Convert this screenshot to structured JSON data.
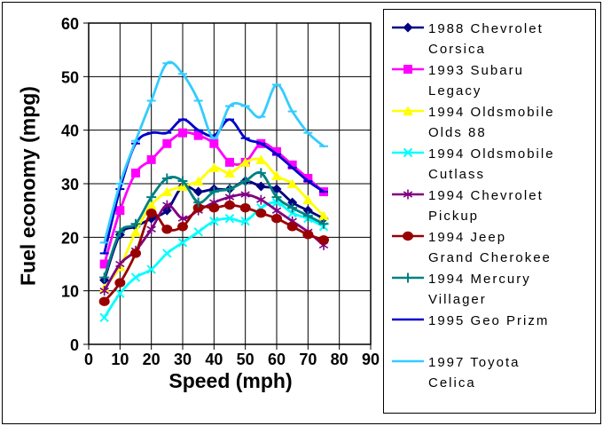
{
  "chart_data": {
    "type": "line",
    "title": "",
    "xlabel": "Speed (mph)",
    "ylabel": "Fuel economy (mpg)",
    "xlim": [
      0,
      90
    ],
    "ylim": [
      0,
      60
    ],
    "x_ticks": [
      0,
      10,
      20,
      30,
      40,
      50,
      60,
      70,
      80,
      90
    ],
    "y_ticks": [
      0,
      10,
      20,
      30,
      40,
      50,
      60
    ],
    "grid": true,
    "legend_position": "right",
    "x": [
      5,
      10,
      15,
      20,
      25,
      30,
      35,
      40,
      45,
      50,
      55,
      60,
      65,
      70,
      75
    ],
    "series": [
      {
        "name": "1988 Chevrolet Corsica",
        "legend_lines": [
          "1988 Chevrolet",
          "Corsica"
        ],
        "color": "#000080",
        "marker": "diamond",
        "values": [
          12,
          20.5,
          22,
          23.5,
          25,
          29.5,
          28.5,
          29,
          29,
          30.5,
          29.5,
          29,
          26.5,
          25,
          23.5
        ]
      },
      {
        "name": "1993 Subaru Legacy",
        "legend_lines": [
          "1993 Subaru",
          "Legacy"
        ],
        "color": "#FF00FF",
        "marker": "square",
        "values": [
          15,
          25,
          32,
          34.5,
          37.5,
          39.5,
          39,
          37.5,
          34,
          34,
          37.5,
          36,
          33.5,
          31,
          28.5
        ]
      },
      {
        "name": "1994 Oldsmobile Olds 88",
        "legend_lines": [
          "1994 Oldsmobile",
          "Olds 88"
        ],
        "color": "#FFFF00",
        "marker": "triangle",
        "values": [
          10.5,
          14.5,
          21,
          26,
          28.5,
          29.5,
          30.5,
          33,
          32,
          34,
          34.5,
          31.5,
          30,
          27,
          24
        ]
      },
      {
        "name": "1994 Oldsmobile Cutlass",
        "legend_lines": [
          "1994 Oldsmobile",
          "Cutlass"
        ],
        "color": "#00FFFF",
        "marker": "x",
        "values": [
          5,
          9.5,
          12.5,
          14,
          17,
          19,
          21,
          23,
          23.5,
          23,
          25.5,
          26.5,
          24.5,
          23.5,
          22
        ]
      },
      {
        "name": "1994 Chevrolet Pickup",
        "legend_lines": [
          "1994 Chevrolet",
          "Pickup"
        ],
        "color": "#800080",
        "marker": "asterisk",
        "values": [
          10,
          15,
          17.5,
          21.5,
          26,
          23.5,
          25,
          26.5,
          27.5,
          28,
          27,
          25,
          23,
          21,
          18.5
        ]
      },
      {
        "name": "1994 Jeep Grand Cherokee",
        "legend_lines": [
          "1994 Jeep",
          "Grand Cherokee"
        ],
        "color": "#990000",
        "marker": "circle",
        "values": [
          8,
          11.5,
          17,
          24.5,
          21.5,
          22,
          25.5,
          25.5,
          26,
          25.5,
          24.5,
          23.5,
          22,
          20.5,
          19.5
        ]
      },
      {
        "name": "1994 Mercury Villager",
        "legend_lines": [
          "1994 Mercury",
          "Villager"
        ],
        "color": "#008080",
        "marker": "plus",
        "values": [
          12.5,
          21,
          22.5,
          27.5,
          31,
          30.5,
          26.5,
          28.5,
          29,
          30.5,
          32,
          27.5,
          25.5,
          24,
          22.5
        ]
      },
      {
        "name": "1995 Geo Prizm",
        "legend_lines": [
          "1995 Geo Prizm",
          ""
        ],
        "color": "#0000CC",
        "marker": "dash",
        "values": [
          17,
          29,
          37.5,
          39.5,
          39.5,
          42,
          40,
          39,
          42,
          38.5,
          37.5,
          35.5,
          33,
          30.5,
          28.5
        ]
      },
      {
        "name": "1997 Toyota Celica",
        "legend_lines": [
          "1997 Toyota",
          "Celica"
        ],
        "color": "#33CCFF",
        "marker": "dash",
        "values": [
          19,
          30,
          38,
          45.5,
          52.5,
          50.5,
          45.5,
          38.5,
          44.5,
          44.5,
          42.5,
          48.5,
          43.5,
          39.5,
          37
        ]
      }
    ]
  }
}
